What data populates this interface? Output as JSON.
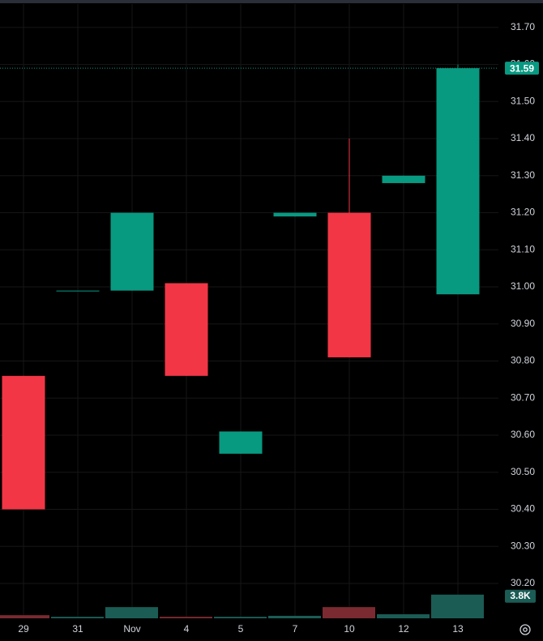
{
  "chart_data": {
    "type": "candlestick",
    "categories": [
      "29",
      "31",
      "Nov",
      "4",
      "5",
      "7",
      "10",
      "12",
      "13"
    ],
    "open": [
      30.76,
      30.99,
      30.99,
      31.01,
      30.55,
      31.19,
      31.2,
      31.28,
      30.98
    ],
    "high": [
      30.76,
      30.99,
      31.2,
      31.01,
      30.61,
      31.2,
      31.4,
      31.3,
      31.6
    ],
    "low": [
      30.4,
      30.99,
      30.99,
      30.76,
      30.55,
      31.19,
      30.81,
      31.28,
      30.98
    ],
    "close": [
      30.4,
      30.99,
      31.2,
      30.76,
      30.61,
      31.2,
      30.81,
      31.3,
      31.59
    ],
    "volume": [
      500,
      250,
      1800,
      250,
      250,
      400,
      1800,
      650,
      3800
    ],
    "last_volume_label": "3.8K",
    "up_color": "#089981",
    "down_color": "#f23645",
    "volume_up_color": "#1b5c55",
    "volume_down_color": "#7a2a30",
    "ylim": [
      30.106,
      31.763
    ],
    "volume_ylim": [
      0,
      26000
    ],
    "yticks": [
      {
        "value": 30.2,
        "label": "30.20"
      },
      {
        "value": 30.3,
        "label": "30.30"
      },
      {
        "value": 30.4,
        "label": "30.40"
      },
      {
        "value": 30.5,
        "label": "30.50"
      },
      {
        "value": 30.6,
        "label": "30.60"
      },
      {
        "value": 30.7,
        "label": "30.70"
      },
      {
        "value": 30.8,
        "label": "30.80"
      },
      {
        "value": 30.9,
        "label": "30.90"
      },
      {
        "value": 31.0,
        "label": "31.00"
      },
      {
        "value": 31.1,
        "label": "31.10"
      },
      {
        "value": 31.2,
        "label": "31.20"
      },
      {
        "value": 31.3,
        "label": "31.30"
      },
      {
        "value": 31.4,
        "label": "31.40"
      },
      {
        "value": 31.5,
        "label": "31.50"
      },
      {
        "value": 31.6,
        "label": "31.60"
      },
      {
        "value": 31.7,
        "label": "31.70"
      }
    ],
    "grid": true
  }
}
